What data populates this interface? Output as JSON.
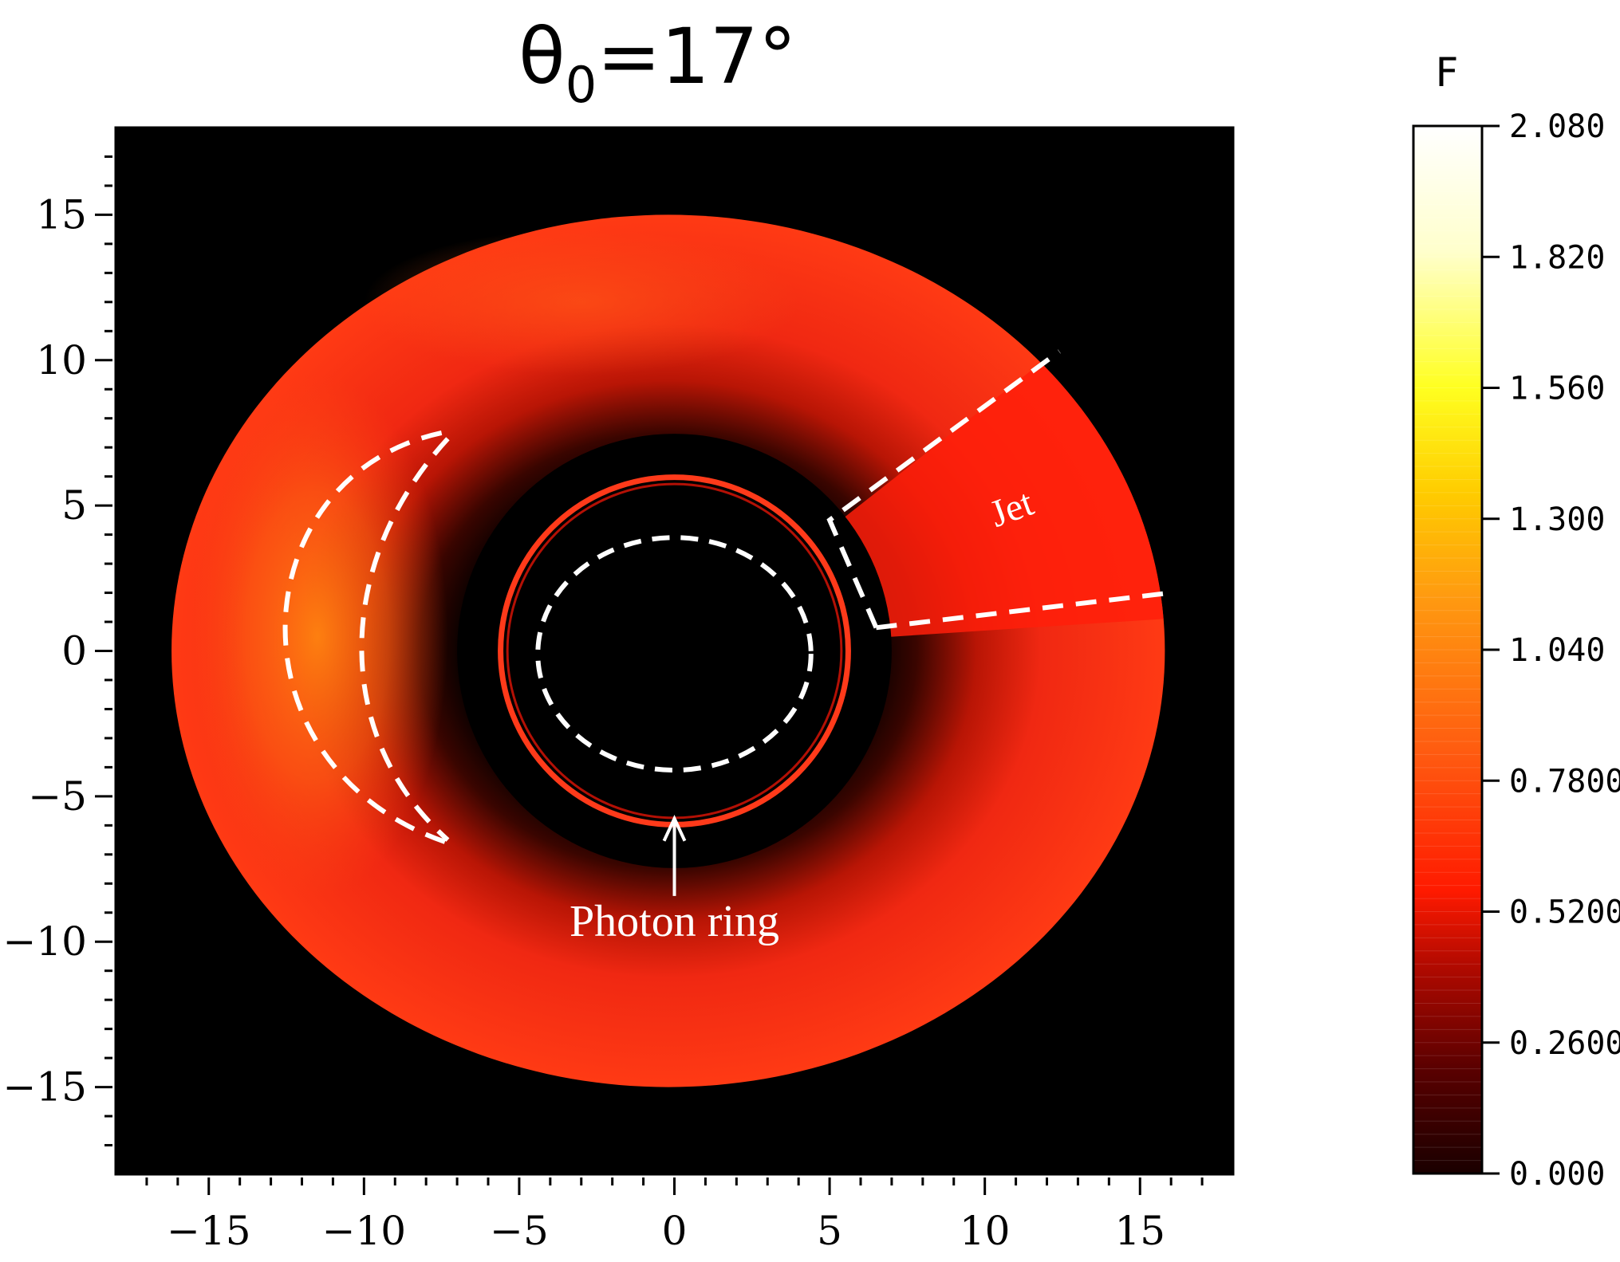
{
  "chart_data": [
    {
      "type": "heatmap",
      "title": "θ0=17°",
      "title_parts": {
        "symbol": "θ",
        "subscript": "0",
        "rest": "=17°"
      },
      "xlim": [
        -18,
        18
      ],
      "ylim": [
        -18,
        18
      ],
      "xticks": [
        -15,
        -10,
        -5,
        0,
        5,
        10,
        15
      ],
      "yticks": [
        15,
        10,
        5,
        0,
        -5,
        -10,
        -15
      ],
      "tick_labels": {
        "x": [
          "−15",
          "−10",
          "−5",
          "0",
          "5",
          "10",
          "15"
        ],
        "y": [
          "15",
          "10",
          "5",
          "0",
          "−5",
          "−10",
          "−15"
        ]
      },
      "xlabel": "",
      "ylabel": "",
      "background_color": "#000000",
      "grid": false,
      "regions": {
        "disk": {
          "center": [
            -0.2,
            0
          ],
          "rx": 16,
          "ry": 15,
          "color": "#f02a12"
        },
        "shadow": {
          "center": [
            0,
            0
          ],
          "radius": 7.2,
          "color": "#000000"
        },
        "photon_ring": {
          "center": [
            0,
            0
          ],
          "radius": 5.6,
          "color": "#ff3a1a"
        },
        "inner_dashed_circle": {
          "center": [
            0,
            0
          ],
          "radius": 4.0,
          "color": "#ffffff"
        },
        "bright_crescent_peak": {
          "center": [
            -11.5,
            0.5
          ],
          "color": "#ff7a10"
        },
        "jet_sector": {
          "angle_start_deg": 4,
          "angle_end_deg": 40,
          "inner_radius": 6.5,
          "color": "#ff1f0a"
        }
      },
      "annotations": [
        {
          "text": "Photon ring",
          "xy": [
            0,
            -5.6
          ],
          "xytext": [
            0,
            -9.8
          ],
          "arrow": true
        },
        {
          "text": "Jet",
          "xy": [
            11,
            4.5
          ],
          "rotation_deg": -20
        }
      ],
      "colorbar": {
        "label": "F",
        "min": 0.0,
        "max": 2.08,
        "ticks": [
          2.08,
          1.82,
          1.56,
          1.3,
          1.04,
          0.78,
          0.52,
          0.26,
          0.0
        ],
        "tick_labels": [
          "2.080",
          "1.820",
          "1.560",
          "1.300",
          "1.040",
          "0.7800",
          "0.5200",
          "0.2600",
          "0.000"
        ],
        "colormap": [
          "#1a0000",
          "#5a0000",
          "#b30a00",
          "#ff1a00",
          "#ff5a10",
          "#ff9a10",
          "#ffcc00",
          "#ffff20",
          "#ffffcc",
          "#ffffff"
        ]
      }
    }
  ]
}
